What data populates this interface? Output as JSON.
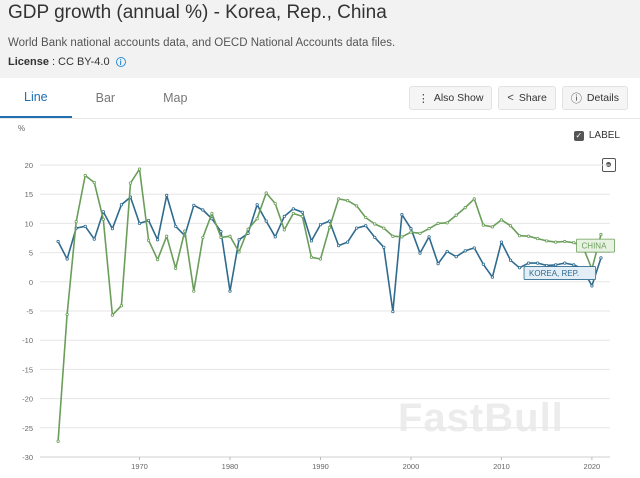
{
  "header": {
    "title": "GDP growth (annual %) - Korea, Rep., China",
    "subtitle": "World Bank national accounts data, and OECD National Accounts data files.",
    "license_key": "License",
    "license_sep": ":",
    "license_value": "CC BY-4.0",
    "license_info_icon": "info-icon"
  },
  "tabs": [
    {
      "label": "Line",
      "active": true
    },
    {
      "label": "Bar",
      "active": false
    },
    {
      "label": "Map",
      "active": false
    }
  ],
  "actions": {
    "also_show": {
      "label": "Also Show",
      "icon": "more-vertical-icon"
    },
    "share": {
      "label": "Share",
      "icon": "share-icon"
    },
    "details": {
      "label": "Details",
      "icon": "info-icon"
    }
  },
  "label_toggle": {
    "label": "LABEL",
    "checked": true
  },
  "expand_icon": "expand-icon",
  "watermark": "FastBull",
  "colors": {
    "korea": "#2f6b8f",
    "china": "#6a9e5a",
    "grid": "#e6e6e6",
    "active_tab": "#1f6fb2"
  },
  "chart_data": {
    "type": "line",
    "ylabel": "%",
    "ylim": [
      -30,
      20
    ],
    "yticks": [
      20,
      15,
      10,
      5,
      0,
      -5,
      -10,
      -15,
      -20,
      -25,
      -30
    ],
    "xlim": [
      1959,
      2022
    ],
    "xticks": [
      1970,
      1980,
      1990,
      2000,
      2010,
      2020
    ],
    "grid": true,
    "series": [
      {
        "name": "KOREA, REP.",
        "color": "#2f6b8f",
        "x": [
          1961,
          1962,
          1963,
          1964,
          1965,
          1966,
          1967,
          1968,
          1969,
          1970,
          1971,
          1972,
          1973,
          1974,
          1975,
          1976,
          1977,
          1978,
          1979,
          1980,
          1981,
          1982,
          1983,
          1984,
          1985,
          1986,
          1987,
          1988,
          1989,
          1990,
          1991,
          1992,
          1993,
          1994,
          1995,
          1996,
          1997,
          1998,
          1999,
          2000,
          2001,
          2002,
          2003,
          2004,
          2005,
          2006,
          2007,
          2008,
          2009,
          2010,
          2011,
          2012,
          2013,
          2014,
          2015,
          2016,
          2017,
          2018,
          2019,
          2020,
          2021
        ],
        "values": [
          6.9,
          3.9,
          9.2,
          9.5,
          7.3,
          12.0,
          9.1,
          13.2,
          14.5,
          10.0,
          10.5,
          7.2,
          14.8,
          9.5,
          7.9,
          13.1,
          12.3,
          10.8,
          8.6,
          -1.6,
          7.2,
          8.3,
          13.2,
          10.4,
          7.7,
          11.2,
          12.5,
          11.9,
          7.0,
          9.8,
          10.4,
          6.2,
          6.8,
          9.2,
          9.6,
          7.6,
          5.9,
          -5.1,
          11.5,
          9.1,
          4.9,
          7.7,
          3.1,
          5.2,
          4.3,
          5.3,
          5.8,
          3.0,
          0.8,
          6.8,
          3.7,
          2.4,
          3.2,
          3.2,
          2.8,
          2.9,
          3.2,
          2.9,
          2.2,
          -0.7,
          4.1
        ],
        "label": {
          "text": "KOREA, REP.",
          "x": 2012.5,
          "y": 1.5
        }
      },
      {
        "name": "CHINA",
        "color": "#6a9e5a",
        "x": [
          1961,
          1962,
          1963,
          1964,
          1965,
          1966,
          1967,
          1968,
          1969,
          1970,
          1971,
          1972,
          1973,
          1974,
          1975,
          1976,
          1977,
          1978,
          1979,
          1980,
          1981,
          1982,
          1983,
          1984,
          1985,
          1986,
          1987,
          1988,
          1989,
          1990,
          1991,
          1992,
          1993,
          1994,
          1995,
          1996,
          1997,
          1998,
          1999,
          2000,
          2001,
          2002,
          2003,
          2004,
          2005,
          2006,
          2007,
          2008,
          2009,
          2010,
          2011,
          2012,
          2013,
          2014,
          2015,
          2016,
          2017,
          2018,
          2019,
          2020,
          2021
        ],
        "values": [
          -27.3,
          -5.6,
          10.3,
          18.2,
          17.0,
          10.7,
          -5.7,
          -4.1,
          16.9,
          19.3,
          7.1,
          3.8,
          7.8,
          2.3,
          8.7,
          -1.6,
          7.6,
          11.7,
          7.6,
          7.8,
          5.1,
          9.0,
          10.8,
          15.2,
          13.4,
          8.9,
          11.7,
          11.2,
          4.2,
          3.9,
          9.3,
          14.2,
          13.9,
          13.0,
          11.0,
          9.9,
          9.2,
          7.8,
          7.7,
          8.5,
          8.3,
          9.1,
          10.0,
          10.1,
          11.4,
          12.7,
          14.2,
          9.7,
          9.4,
          10.6,
          9.6,
          7.9,
          7.8,
          7.4,
          7.0,
          6.8,
          6.9,
          6.7,
          6.0,
          2.2,
          8.1
        ],
        "label": {
          "text": "CHINA",
          "x": 2018.3,
          "y": 6.2
        }
      }
    ]
  }
}
